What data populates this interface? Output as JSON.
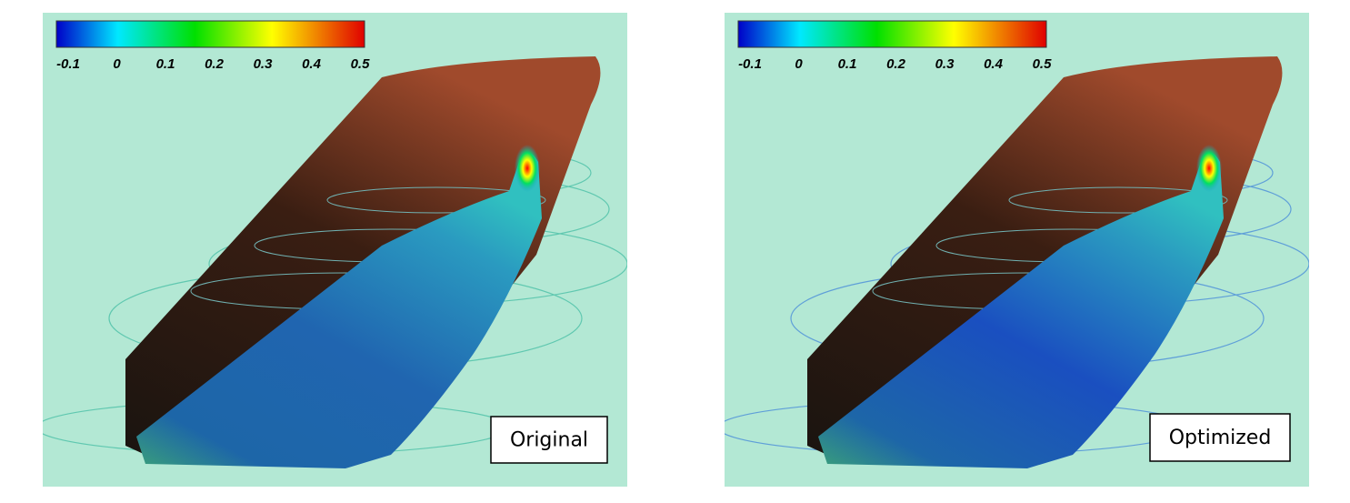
{
  "panels": [
    {
      "colorbar": {
        "range": [
          -0.1,
          0.5
        ],
        "ticks": [
          -0.1,
          0,
          0.1,
          0.2,
          0.3,
          0.4,
          0.5
        ]
      },
      "label": "Original"
    },
    {
      "colorbar": {
        "range": [
          -0.1,
          0.5
        ],
        "ticks": [
          -0.1,
          0,
          0.1,
          0.2,
          0.3,
          0.4,
          0.5
        ]
      },
      "label": "Optimized"
    }
  ]
}
